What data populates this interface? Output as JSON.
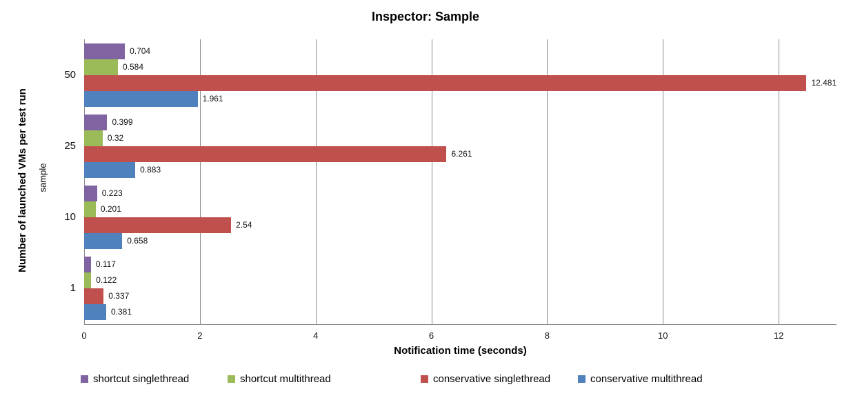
{
  "title": "Inspector: Sample",
  "axes": {
    "x_title": "Notification time (seconds)",
    "y_title": "Number of launched VMs per test run",
    "y_group_label": "sample",
    "x_tick_labels": [
      "0",
      "2",
      "4",
      "6",
      "8",
      "10",
      "12"
    ],
    "x_min": 0,
    "x_max": 13
  },
  "chart_data": {
    "type": "bar",
    "orientation": "horizontal",
    "title": "Inspector: Sample",
    "xlabel": "Notification time (seconds)",
    "ylabel": "Number of launched VMs per test run",
    "y_group_label": "sample",
    "categories": [
      "50",
      "25",
      "10",
      "1"
    ],
    "series": [
      {
        "name": "shortcut singlethread",
        "color": "#8064A2",
        "values": [
          0.704,
          0.399,
          0.223,
          0.117
        ]
      },
      {
        "name": "shortcut multithread",
        "color": "#9BBB59",
        "values": [
          0.584,
          0.32,
          0.201,
          0.122
        ]
      },
      {
        "name": "conservative singlethread",
        "color": "#C0504D",
        "values": [
          12.481,
          6.261,
          2.54,
          0.337
        ]
      },
      {
        "name": "conservative multithread",
        "color": "#4F81BD",
        "values": [
          1.961,
          0.883,
          0.658,
          0.381
        ]
      }
    ],
    "value_labels": [
      [
        "0.704",
        "0.399",
        "0.223",
        "0.117"
      ],
      [
        "0.584",
        "0.32",
        "0.201",
        "0.122"
      ],
      [
        "12.481",
        "6.261",
        "2.54",
        "0.337"
      ],
      [
        "1.961",
        "0.883",
        "0.658",
        "0.381"
      ]
    ],
    "xticks": [
      0,
      2,
      4,
      6,
      8,
      10,
      12
    ],
    "xlim": [
      0,
      13
    ],
    "grid": "vertical",
    "legend_position": "bottom",
    "data_labels": true
  },
  "legend": {
    "items": [
      {
        "label": "shortcut singlethread",
        "color": "#8064A2"
      },
      {
        "label": "shortcut multithread",
        "color": "#9BBB59"
      },
      {
        "label": "conservative singlethread",
        "color": "#C0504D"
      },
      {
        "label": "conservative multithread",
        "color": "#4F81BD"
      }
    ]
  }
}
